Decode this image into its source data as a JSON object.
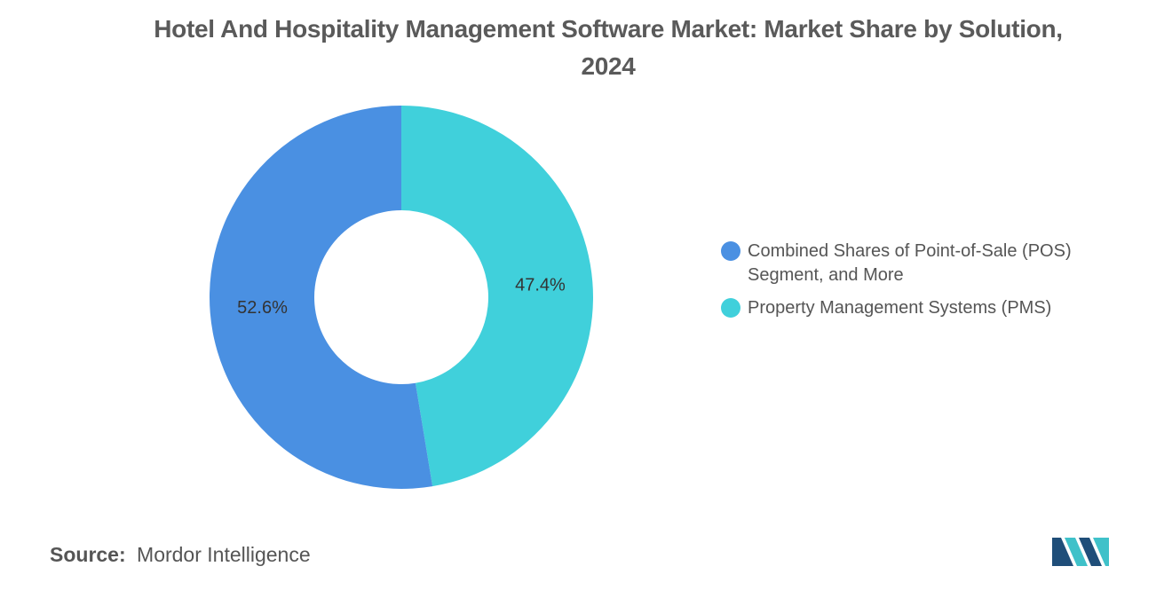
{
  "chart_data": {
    "type": "pie",
    "title": "Hotel And Hospitality Management Software Market: Market Share by Solution, 2024",
    "donut": true,
    "start_angle_deg": 0,
    "direction": "clockwise",
    "slices": [
      {
        "label": "Property Management Systems (PMS)",
        "value": 47.4,
        "data_label": "47.4%",
        "color": "#40D0DB"
      },
      {
        "label": "Combined Shares of Point-of-Sale (POS) Segment, and More",
        "value": 52.6,
        "data_label": "52.6%",
        "color": "#4A90E2"
      }
    ],
    "legend_position": "right",
    "legend": [
      {
        "label": "Combined Shares of Point-of-Sale (POS) Segment, and More",
        "color": "#4A90E2"
      },
      {
        "label": "Property Management Systems (PMS)",
        "color": "#40D0DB"
      }
    ]
  },
  "source": {
    "key": "Source:",
    "value": "Mordor Intelligence"
  },
  "logo": {
    "icon": "mordor-intelligence-logo-icon",
    "colors": [
      "#1F4E79",
      "#3FC1C9"
    ]
  }
}
